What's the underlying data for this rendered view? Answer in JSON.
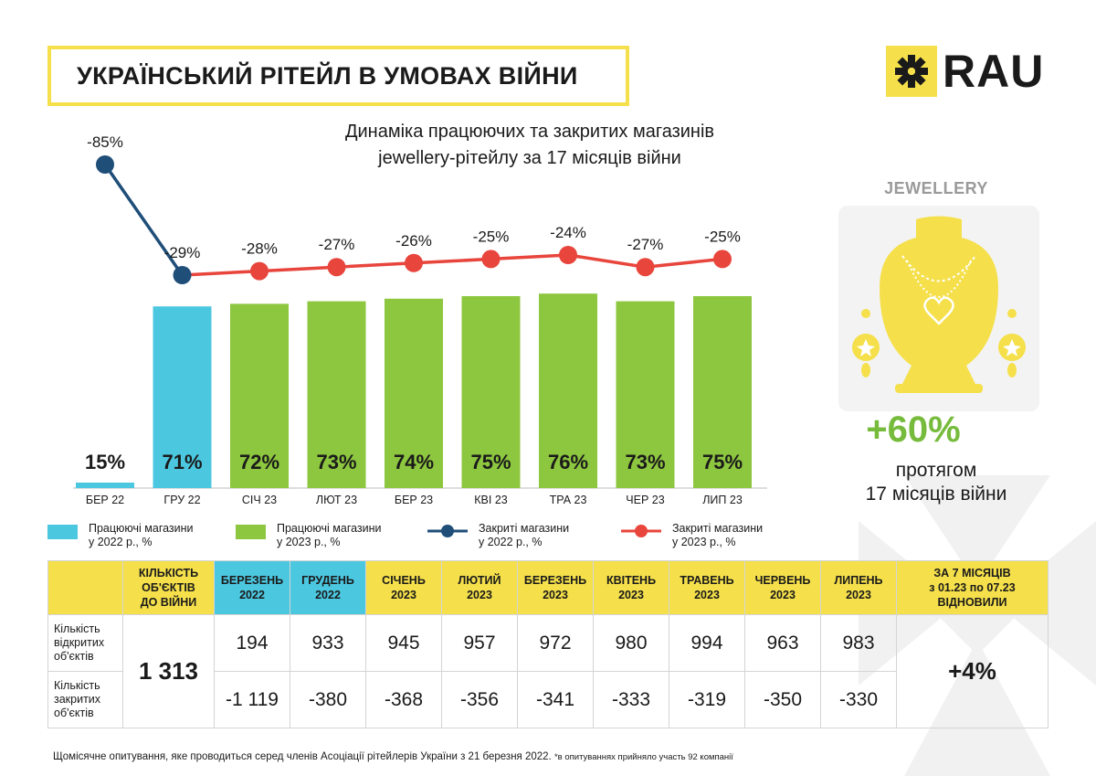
{
  "header": {
    "title": "УКРАЇНСЬКИЙ РІТЕЙЛ В УМОВАХ ВІЙНИ",
    "logo_text": "RAU"
  },
  "subtitle": {
    "line1": "Динаміка працюючих та закритих магазинів",
    "line2": "jewellery-рітейлу за 17 місяців війни"
  },
  "colors": {
    "yellow": "#f5e04b",
    "blue_bar": "#4cc7e0",
    "green_bar": "#8dc63f",
    "line_2022": "#1f4e79",
    "line_2023": "#e8453c"
  },
  "chart_data": {
    "type": "bar",
    "categories": [
      "БЕР 22",
      "ГРУ 22",
      "СІЧ 23",
      "ЛЮТ 23",
      "БЕР 23",
      "КВІ 23",
      "ТРА 23",
      "ЧЕР 23",
      "ЛИП 23"
    ],
    "series": [
      {
        "name": "Працюючі магазини у 2022 р., %",
        "type": "bar",
        "values": [
          15,
          71,
          null,
          null,
          null,
          null,
          null,
          null,
          null
        ]
      },
      {
        "name": "Працюючі магазини у 2023 р., %",
        "type": "bar",
        "values": [
          null,
          null,
          72,
          73,
          74,
          75,
          76,
          73,
          75
        ]
      },
      {
        "name": "Закриті магазини у 2022 р., %",
        "type": "line",
        "values": [
          -85,
          -29,
          null,
          null,
          null,
          null,
          null,
          null,
          null
        ]
      },
      {
        "name": "Закриті магазини у 2023 р., %",
        "type": "line",
        "values": [
          null,
          -29,
          -28,
          -27,
          -26,
          -25,
          -24,
          -27,
          -25
        ]
      }
    ],
    "bar_labels": [
      "15%",
      "71%",
      "72%",
      "73%",
      "74%",
      "75%",
      "76%",
      "73%",
      "75%"
    ],
    "line_labels": [
      "-85%",
      "-29%",
      "-28%",
      "-27%",
      "-26%",
      "-25%",
      "-24%",
      "-27%",
      "-25%"
    ],
    "title": "Динаміка працюючих та закритих магазинів jewellery-рітейлу за 17 місяців війни"
  },
  "legend": [
    {
      "line1": "Працюючі магазини",
      "line2": "у 2022 р., %",
      "kind": "box",
      "color": "#4cc7e0"
    },
    {
      "line1": "Працюючі магазини",
      "line2": "у 2023 р., %",
      "kind": "box",
      "color": "#8dc63f"
    },
    {
      "line1": "Закриті магазини",
      "line2": "у 2022 р., %",
      "kind": "line",
      "color": "#1f4e79"
    },
    {
      "line1": "Закриті магазини",
      "line2": "у 2023 р., %",
      "kind": "line",
      "color": "#e8453c"
    }
  ],
  "right_panel": {
    "category": "JEWELLERY",
    "big_value": "+60%",
    "caption_line1": "протягом",
    "caption_line2": "17 місяців війни"
  },
  "table": {
    "head_first_lines": [
      "КІЛЬКІСТЬ",
      "ОБ'ЄКТІВ",
      "ДО ВІЙНИ"
    ],
    "months": [
      {
        "m": "БЕРЕЗЕНЬ",
        "y": "2022"
      },
      {
        "m": "ГРУДЕНЬ",
        "y": "2022"
      },
      {
        "m": "СІЧЕНЬ",
        "y": "2023"
      },
      {
        "m": "ЛЮТИЙ",
        "y": "2023"
      },
      {
        "m": "БЕРЕЗЕНЬ",
        "y": "2023"
      },
      {
        "m": "КВІТЕНЬ",
        "y": "2023"
      },
      {
        "m": "ТРАВЕНЬ",
        "y": "2023"
      },
      {
        "m": "ЧЕРВЕНЬ",
        "y": "2023"
      },
      {
        "m": "ЛИПЕНЬ",
        "y": "2023"
      }
    ],
    "head_last_lines": [
      "ЗА 7 МІСЯЦІВ",
      "з 01.23 по 07.23",
      "ВІДНОВИЛИ"
    ],
    "row_open_label": [
      "Кількість",
      "відкритих",
      "об'єктів"
    ],
    "row_closed_label": [
      "Кількість",
      "закритих",
      "об'єктів"
    ],
    "total_before_war": "1 313",
    "open_values": [
      "194",
      "933",
      "945",
      "957",
      "972",
      "980",
      "994",
      "963",
      "983"
    ],
    "closed_values": [
      "-1 119",
      "-380",
      "-368",
      "-356",
      "-341",
      "-333",
      "-319",
      "-350",
      "-330"
    ],
    "recovered": "+4%"
  },
  "footer": {
    "text": "Щомісячне опитування, яке проводиться серед членів Асоціації рітейлерів України з 21 березня 2022.",
    "note": "*в опитуваннях прийняло участь 92 компанії"
  }
}
